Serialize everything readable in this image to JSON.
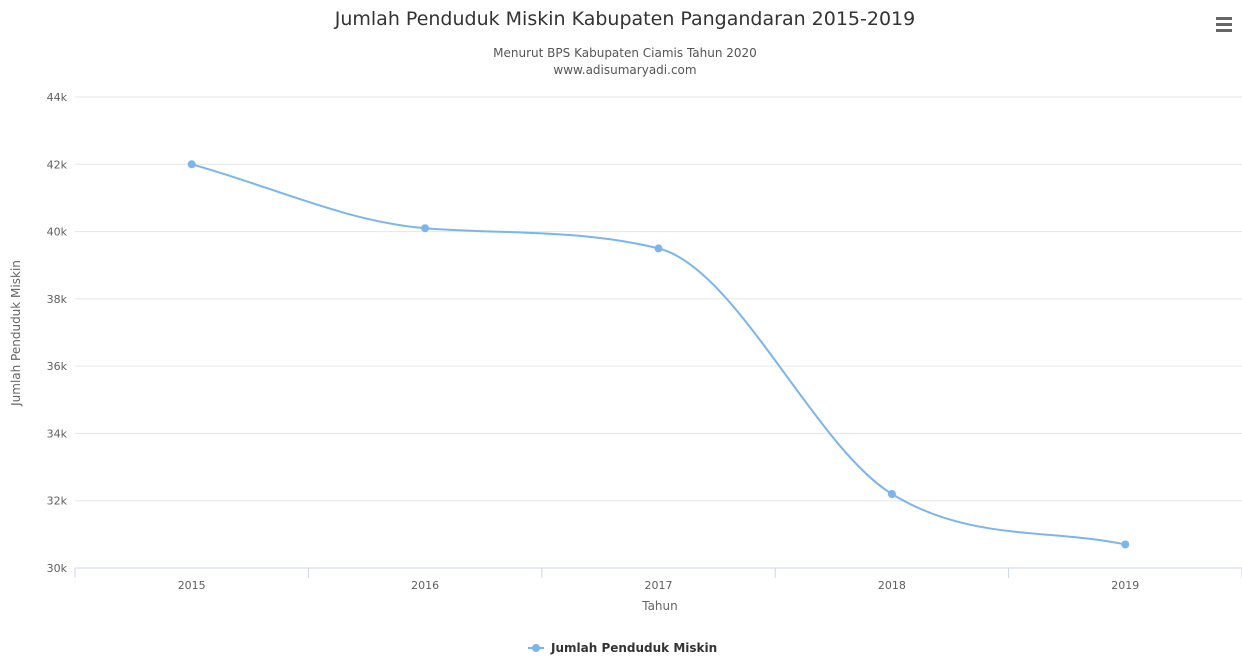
{
  "chart_data": {
    "type": "line",
    "title": "Jumlah Penduduk Miskin Kabupaten Pangandaran 2015-2019",
    "subtitle_lines": [
      "Menurut BPS Kabupaten Ciamis Tahun 2020",
      "www.adisumaryadi.com"
    ],
    "xlabel": "Tahun",
    "ylabel": "Jumlah Penduduk Miskin",
    "categories": [
      "2015",
      "2016",
      "2017",
      "2018",
      "2019"
    ],
    "series": [
      {
        "name": "Jumlah Penduduk Miskin",
        "values": [
          42000,
          40100,
          39500,
          32200,
          30700
        ],
        "color": "#7cb5ec"
      }
    ],
    "ylim": [
      30000,
      44000
    ],
    "yticks": [
      30000,
      32000,
      34000,
      36000,
      38000,
      40000,
      42000,
      44000
    ],
    "ytick_labels": [
      "30k",
      "32k",
      "34k",
      "36k",
      "38k",
      "40k",
      "42k",
      "44k"
    ],
    "grid": true,
    "legend_position": "bottom-center",
    "smooth": true
  },
  "menu": {
    "icon": "hamburger-menu-icon",
    "glyph": "☰"
  },
  "colors": {
    "series": "#7cb5ec",
    "grid": "#e6e6e6",
    "axis": "#ccd6eb"
  }
}
